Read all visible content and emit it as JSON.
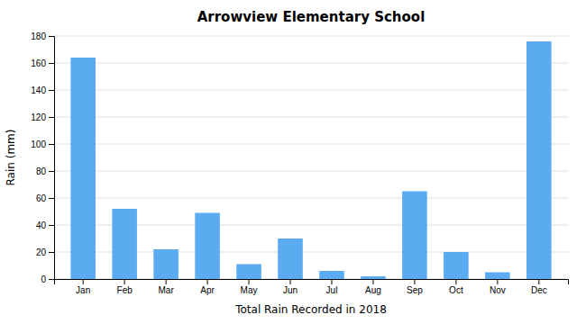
{
  "chart_data": {
    "type": "bar",
    "title": "Arrowview Elementary School",
    "xlabel": "Total Rain Recorded in 2018",
    "ylabel": "Rain (mm)",
    "categories": [
      "Jan",
      "Feb",
      "Mar",
      "Apr",
      "May",
      "Jun",
      "Jul",
      "Aug",
      "Sep",
      "Oct",
      "Nov",
      "Dec"
    ],
    "values": [
      164,
      52,
      22,
      49,
      11,
      30,
      6,
      2,
      65,
      20,
      5,
      176
    ],
    "color": "#5aabf0",
    "ylim": [
      0,
      180
    ],
    "yticks": [
      0,
      20,
      40,
      60,
      80,
      100,
      120,
      140,
      160,
      180
    ],
    "grid": true
  }
}
